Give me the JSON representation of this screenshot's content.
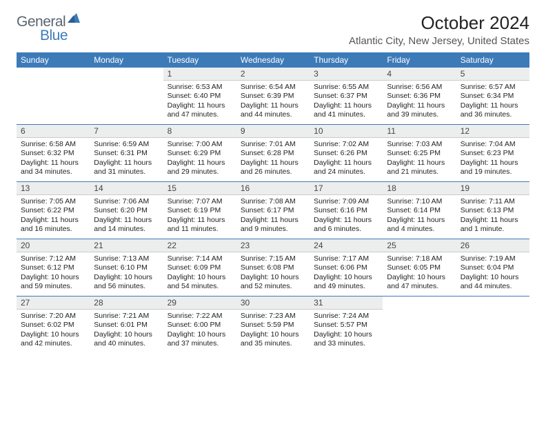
{
  "logo": {
    "text1": "General",
    "text2": "Blue"
  },
  "title": "October 2024",
  "location": "Atlantic City, New Jersey, United States",
  "colors": {
    "header_bg": "#3d7bb8",
    "daynum_bg": "#eceded",
    "text": "#222222",
    "logo_gray": "#5a6570",
    "logo_blue": "#3d7bb8"
  },
  "day_names": [
    "Sunday",
    "Monday",
    "Tuesday",
    "Wednesday",
    "Thursday",
    "Friday",
    "Saturday"
  ],
  "weeks": [
    [
      {
        "n": "",
        "sunrise": "",
        "sunset": "",
        "daylight": ""
      },
      {
        "n": "",
        "sunrise": "",
        "sunset": "",
        "daylight": ""
      },
      {
        "n": "1",
        "sunrise": "Sunrise: 6:53 AM",
        "sunset": "Sunset: 6:40 PM",
        "daylight": "Daylight: 11 hours and 47 minutes."
      },
      {
        "n": "2",
        "sunrise": "Sunrise: 6:54 AM",
        "sunset": "Sunset: 6:39 PM",
        "daylight": "Daylight: 11 hours and 44 minutes."
      },
      {
        "n": "3",
        "sunrise": "Sunrise: 6:55 AM",
        "sunset": "Sunset: 6:37 PM",
        "daylight": "Daylight: 11 hours and 41 minutes."
      },
      {
        "n": "4",
        "sunrise": "Sunrise: 6:56 AM",
        "sunset": "Sunset: 6:36 PM",
        "daylight": "Daylight: 11 hours and 39 minutes."
      },
      {
        "n": "5",
        "sunrise": "Sunrise: 6:57 AM",
        "sunset": "Sunset: 6:34 PM",
        "daylight": "Daylight: 11 hours and 36 minutes."
      }
    ],
    [
      {
        "n": "6",
        "sunrise": "Sunrise: 6:58 AM",
        "sunset": "Sunset: 6:32 PM",
        "daylight": "Daylight: 11 hours and 34 minutes."
      },
      {
        "n": "7",
        "sunrise": "Sunrise: 6:59 AM",
        "sunset": "Sunset: 6:31 PM",
        "daylight": "Daylight: 11 hours and 31 minutes."
      },
      {
        "n": "8",
        "sunrise": "Sunrise: 7:00 AM",
        "sunset": "Sunset: 6:29 PM",
        "daylight": "Daylight: 11 hours and 29 minutes."
      },
      {
        "n": "9",
        "sunrise": "Sunrise: 7:01 AM",
        "sunset": "Sunset: 6:28 PM",
        "daylight": "Daylight: 11 hours and 26 minutes."
      },
      {
        "n": "10",
        "sunrise": "Sunrise: 7:02 AM",
        "sunset": "Sunset: 6:26 PM",
        "daylight": "Daylight: 11 hours and 24 minutes."
      },
      {
        "n": "11",
        "sunrise": "Sunrise: 7:03 AM",
        "sunset": "Sunset: 6:25 PM",
        "daylight": "Daylight: 11 hours and 21 minutes."
      },
      {
        "n": "12",
        "sunrise": "Sunrise: 7:04 AM",
        "sunset": "Sunset: 6:23 PM",
        "daylight": "Daylight: 11 hours and 19 minutes."
      }
    ],
    [
      {
        "n": "13",
        "sunrise": "Sunrise: 7:05 AM",
        "sunset": "Sunset: 6:22 PM",
        "daylight": "Daylight: 11 hours and 16 minutes."
      },
      {
        "n": "14",
        "sunrise": "Sunrise: 7:06 AM",
        "sunset": "Sunset: 6:20 PM",
        "daylight": "Daylight: 11 hours and 14 minutes."
      },
      {
        "n": "15",
        "sunrise": "Sunrise: 7:07 AM",
        "sunset": "Sunset: 6:19 PM",
        "daylight": "Daylight: 11 hours and 11 minutes."
      },
      {
        "n": "16",
        "sunrise": "Sunrise: 7:08 AM",
        "sunset": "Sunset: 6:17 PM",
        "daylight": "Daylight: 11 hours and 9 minutes."
      },
      {
        "n": "17",
        "sunrise": "Sunrise: 7:09 AM",
        "sunset": "Sunset: 6:16 PM",
        "daylight": "Daylight: 11 hours and 6 minutes."
      },
      {
        "n": "18",
        "sunrise": "Sunrise: 7:10 AM",
        "sunset": "Sunset: 6:14 PM",
        "daylight": "Daylight: 11 hours and 4 minutes."
      },
      {
        "n": "19",
        "sunrise": "Sunrise: 7:11 AM",
        "sunset": "Sunset: 6:13 PM",
        "daylight": "Daylight: 11 hours and 1 minute."
      }
    ],
    [
      {
        "n": "20",
        "sunrise": "Sunrise: 7:12 AM",
        "sunset": "Sunset: 6:12 PM",
        "daylight": "Daylight: 10 hours and 59 minutes."
      },
      {
        "n": "21",
        "sunrise": "Sunrise: 7:13 AM",
        "sunset": "Sunset: 6:10 PM",
        "daylight": "Daylight: 10 hours and 56 minutes."
      },
      {
        "n": "22",
        "sunrise": "Sunrise: 7:14 AM",
        "sunset": "Sunset: 6:09 PM",
        "daylight": "Daylight: 10 hours and 54 minutes."
      },
      {
        "n": "23",
        "sunrise": "Sunrise: 7:15 AM",
        "sunset": "Sunset: 6:08 PM",
        "daylight": "Daylight: 10 hours and 52 minutes."
      },
      {
        "n": "24",
        "sunrise": "Sunrise: 7:17 AM",
        "sunset": "Sunset: 6:06 PM",
        "daylight": "Daylight: 10 hours and 49 minutes."
      },
      {
        "n": "25",
        "sunrise": "Sunrise: 7:18 AM",
        "sunset": "Sunset: 6:05 PM",
        "daylight": "Daylight: 10 hours and 47 minutes."
      },
      {
        "n": "26",
        "sunrise": "Sunrise: 7:19 AM",
        "sunset": "Sunset: 6:04 PM",
        "daylight": "Daylight: 10 hours and 44 minutes."
      }
    ],
    [
      {
        "n": "27",
        "sunrise": "Sunrise: 7:20 AM",
        "sunset": "Sunset: 6:02 PM",
        "daylight": "Daylight: 10 hours and 42 minutes."
      },
      {
        "n": "28",
        "sunrise": "Sunrise: 7:21 AM",
        "sunset": "Sunset: 6:01 PM",
        "daylight": "Daylight: 10 hours and 40 minutes."
      },
      {
        "n": "29",
        "sunrise": "Sunrise: 7:22 AM",
        "sunset": "Sunset: 6:00 PM",
        "daylight": "Daylight: 10 hours and 37 minutes."
      },
      {
        "n": "30",
        "sunrise": "Sunrise: 7:23 AM",
        "sunset": "Sunset: 5:59 PM",
        "daylight": "Daylight: 10 hours and 35 minutes."
      },
      {
        "n": "31",
        "sunrise": "Sunrise: 7:24 AM",
        "sunset": "Sunset: 5:57 PM",
        "daylight": "Daylight: 10 hours and 33 minutes."
      },
      {
        "n": "",
        "sunrise": "",
        "sunset": "",
        "daylight": ""
      },
      {
        "n": "",
        "sunrise": "",
        "sunset": "",
        "daylight": ""
      }
    ]
  ]
}
